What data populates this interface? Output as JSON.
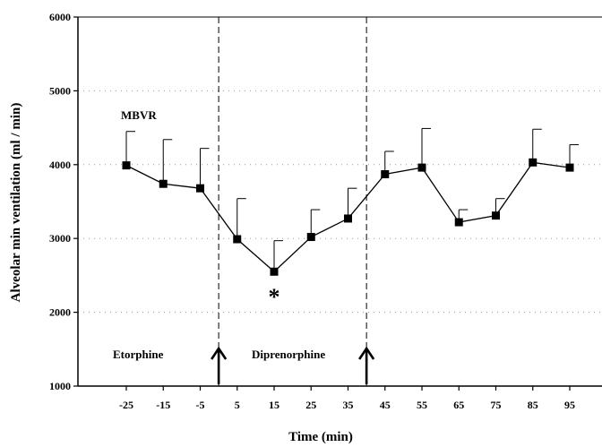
{
  "chart_data": {
    "type": "line",
    "title": "",
    "xlabel": "Time (min)",
    "ylabel": "Alveolar min ventilation (ml / min)",
    "x": [
      -25,
      -15,
      -5,
      5,
      15,
      25,
      35,
      45,
      55,
      65,
      75,
      85,
      95
    ],
    "x_tick_labels": [
      "-25",
      "-15",
      "-5",
      "5",
      "15",
      "25",
      "35",
      "45",
      "55",
      "65",
      "75",
      "85",
      "95"
    ],
    "ylim": [
      1000,
      6000
    ],
    "y_ticks": [
      1000,
      2000,
      3000,
      4000,
      5000,
      6000
    ],
    "y_tick_labels": [
      "1000",
      "2000",
      "3000",
      "4000",
      "5000",
      "6000"
    ],
    "grid": "horizontal dotted",
    "series": [
      {
        "values": [
          3990,
          3740,
          3680,
          2990,
          2550,
          3020,
          3270,
          3870,
          3960,
          3220,
          3310,
          4030,
          3960
        ],
        "error_upper": [
          4450,
          4340,
          4220,
          3540,
          2970,
          3390,
          3680,
          4180,
          4490,
          3390,
          3540,
          4480,
          4270
        ],
        "color": "#000000",
        "marker": "square"
      }
    ],
    "vlines": [
      0,
      40
    ],
    "annotations": {
      "group_label": "MBVR",
      "drug1": "Etorphine",
      "drug2": "Diprenorphine",
      "significance": "*",
      "significance_x": 15
    }
  }
}
